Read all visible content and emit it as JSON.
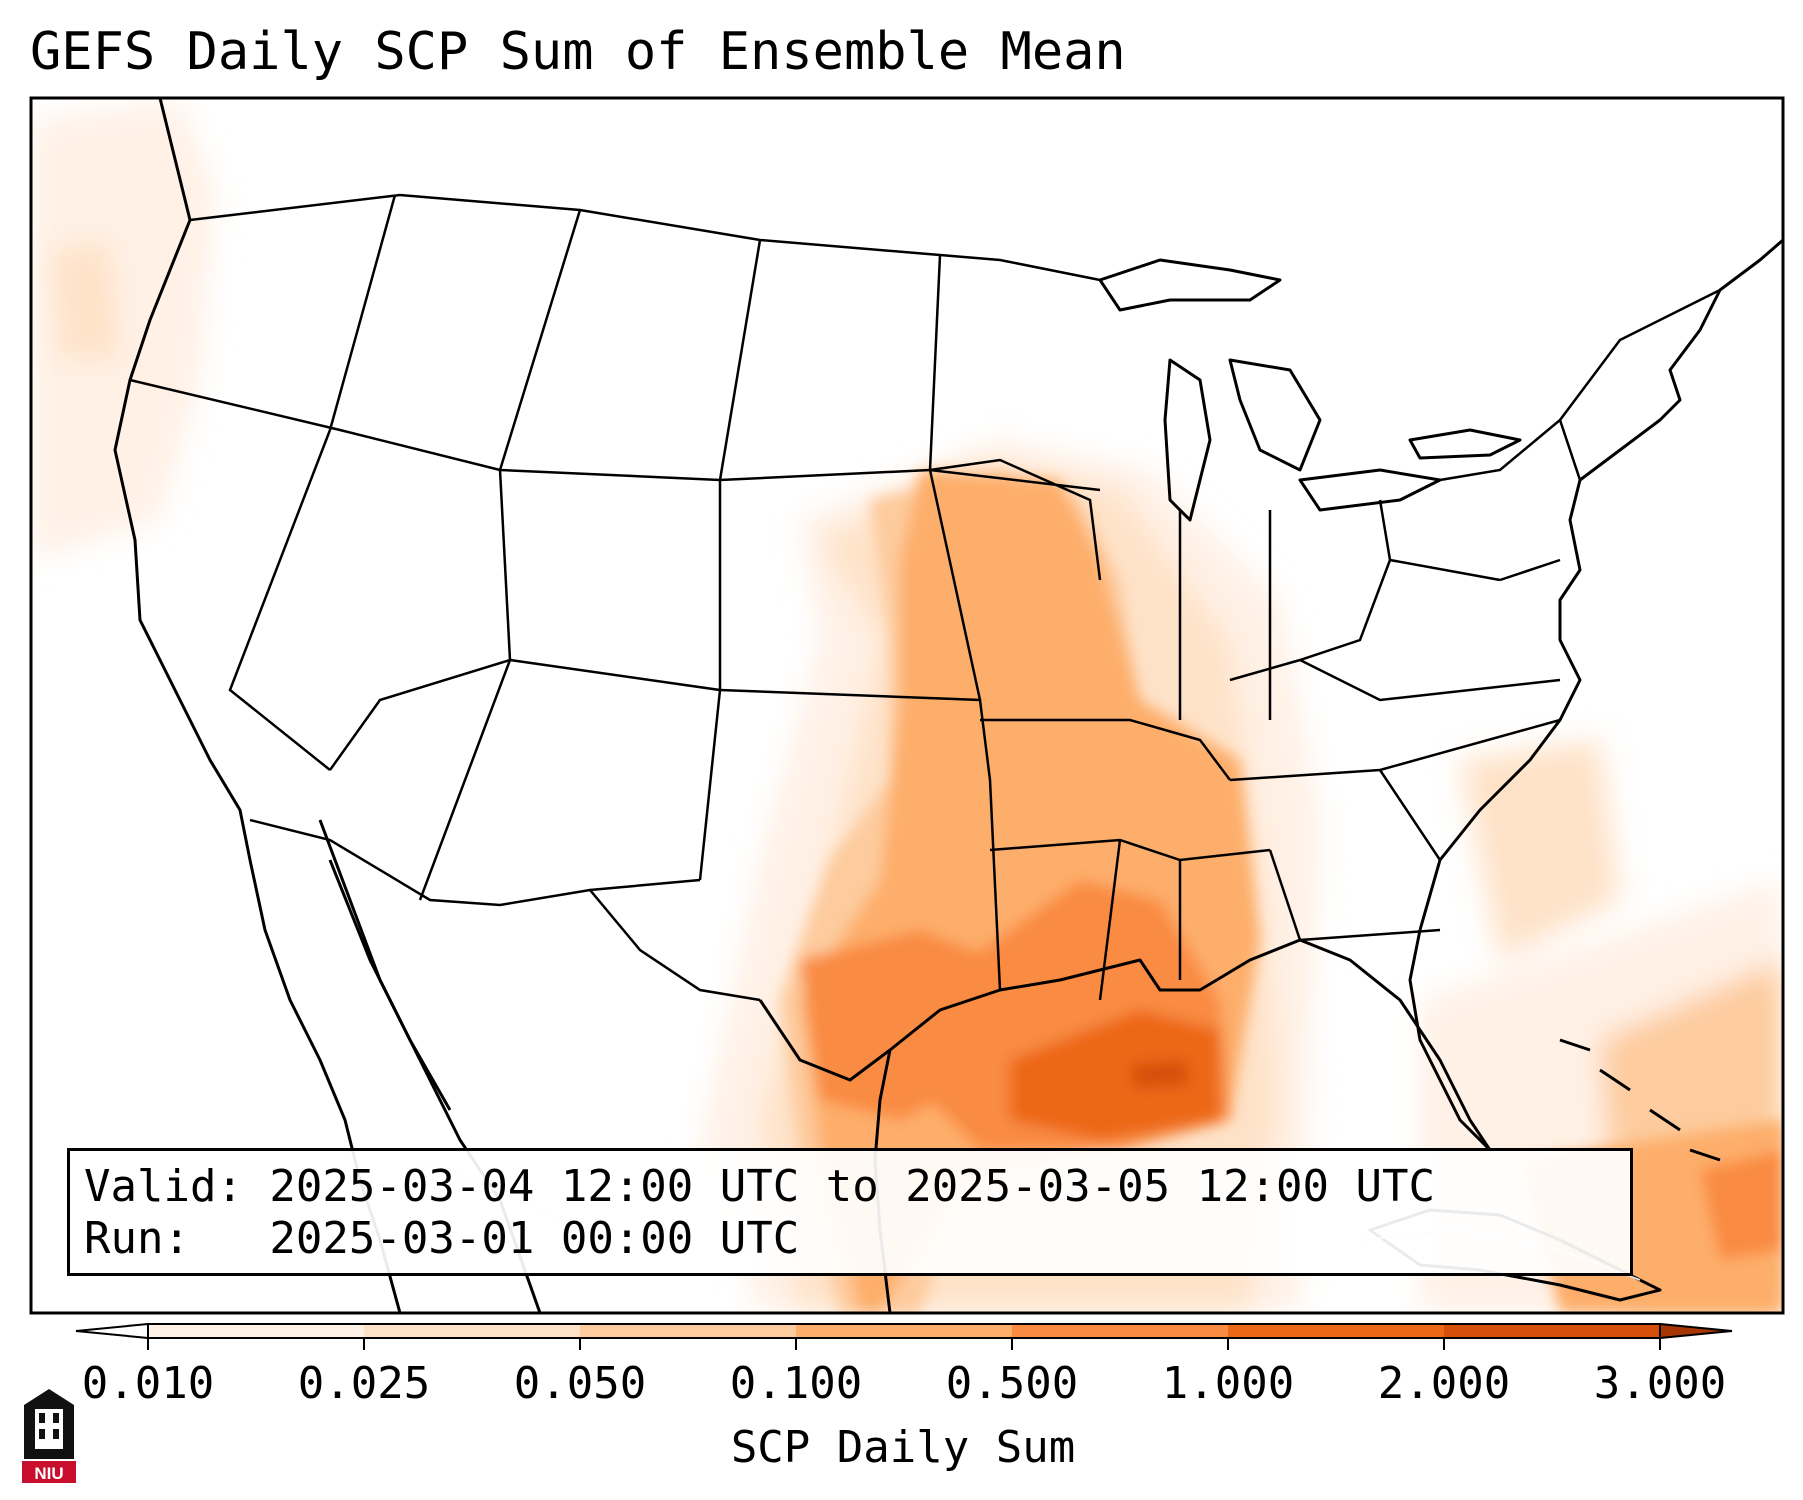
{
  "title": "GEFS Daily SCP Sum of Ensemble Mean",
  "info": {
    "valid": "Valid: 2025-03-04 12:00 UTC to 2025-03-05 12:00 UTC",
    "run": "Run:   2025-03-01 00:00 UTC"
  },
  "colorbar": {
    "title": "SCP Daily Sum",
    "ticks": [
      "0.010",
      "0.025",
      "0.050",
      "0.100",
      "0.500",
      "1.000",
      "2.000",
      "3.000"
    ],
    "colors": [
      "#fff1e6",
      "#fee2c8",
      "#fdcb9d",
      "#fdae6b",
      "#f98b42",
      "#ec6716",
      "#d6500c"
    ],
    "under_color": "#ffffff",
    "over_color": "#a63603"
  },
  "logo": {
    "text": "NIU",
    "accent": "#c8102e"
  }
}
